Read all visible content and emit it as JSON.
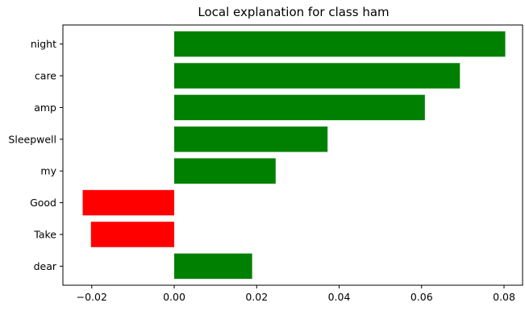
{
  "chart_data": {
    "type": "bar",
    "orientation": "horizontal",
    "title": "Local explanation for class ham",
    "xlabel": "",
    "ylabel": "",
    "categories": [
      "night",
      "care",
      "amp",
      "Sleepwell",
      "my",
      "Good",
      "Take",
      "dear"
    ],
    "values": [
      0.0803,
      0.0693,
      0.0608,
      0.0372,
      0.0246,
      -0.0222,
      -0.0202,
      0.0189
    ],
    "xlim": [
      -0.027,
      0.0845
    ],
    "xticks": [
      -0.02,
      0.0,
      0.02,
      0.04,
      0.06,
      0.08
    ],
    "xtick_labels": [
      "−0.02",
      "0.00",
      "0.02",
      "0.04",
      "0.06",
      "0.08"
    ],
    "grid": false,
    "colors": {
      "positive": "#008000",
      "negative": "#ff0000"
    }
  }
}
